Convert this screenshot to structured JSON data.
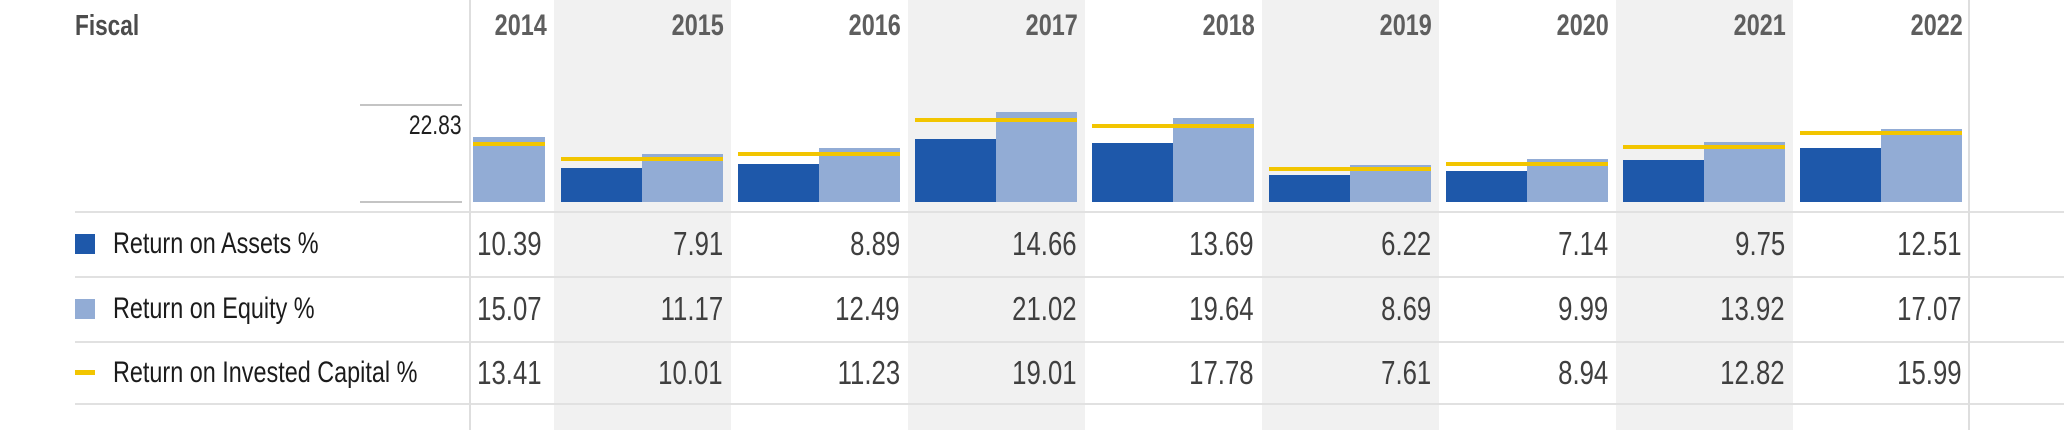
{
  "title": {
    "fiscal_label": "Fiscal"
  },
  "axis": {
    "max_label": "22.83"
  },
  "colors": {
    "roa_bar": "#1E58AA",
    "roe_bar": "#92ACD5",
    "roic_line": "#F2C500",
    "column_stripe": "#F1F1F1",
    "divider": "#E1E1E1"
  },
  "chart_data": {
    "type": "bar",
    "categories": [
      "2014",
      "2015",
      "2016",
      "2017",
      "2018",
      "2019",
      "2020",
      "2021",
      "2022"
    ],
    "series": [
      {
        "name": "Return on Assets %",
        "type": "bar",
        "color": "#1E58AA",
        "values": [
          10.39,
          7.91,
          8.89,
          14.66,
          13.69,
          6.22,
          7.14,
          9.75,
          12.51
        ]
      },
      {
        "name": "Return on Equity %",
        "type": "bar",
        "color": "#92ACD5",
        "values": [
          15.07,
          11.17,
          12.49,
          21.02,
          19.64,
          8.69,
          9.99,
          13.92,
          17.07
        ]
      },
      {
        "name": "Return on Invested Capital %",
        "type": "line",
        "color": "#F2C500",
        "values": [
          13.41,
          10.01,
          11.23,
          19.01,
          17.78,
          7.61,
          8.94,
          12.82,
          15.99
        ]
      }
    ],
    "ylim": [
      0,
      22.83
    ],
    "gridline_label": "22.83",
    "grid": "single top tick and baseline tick only",
    "legend_position": "left"
  }
}
